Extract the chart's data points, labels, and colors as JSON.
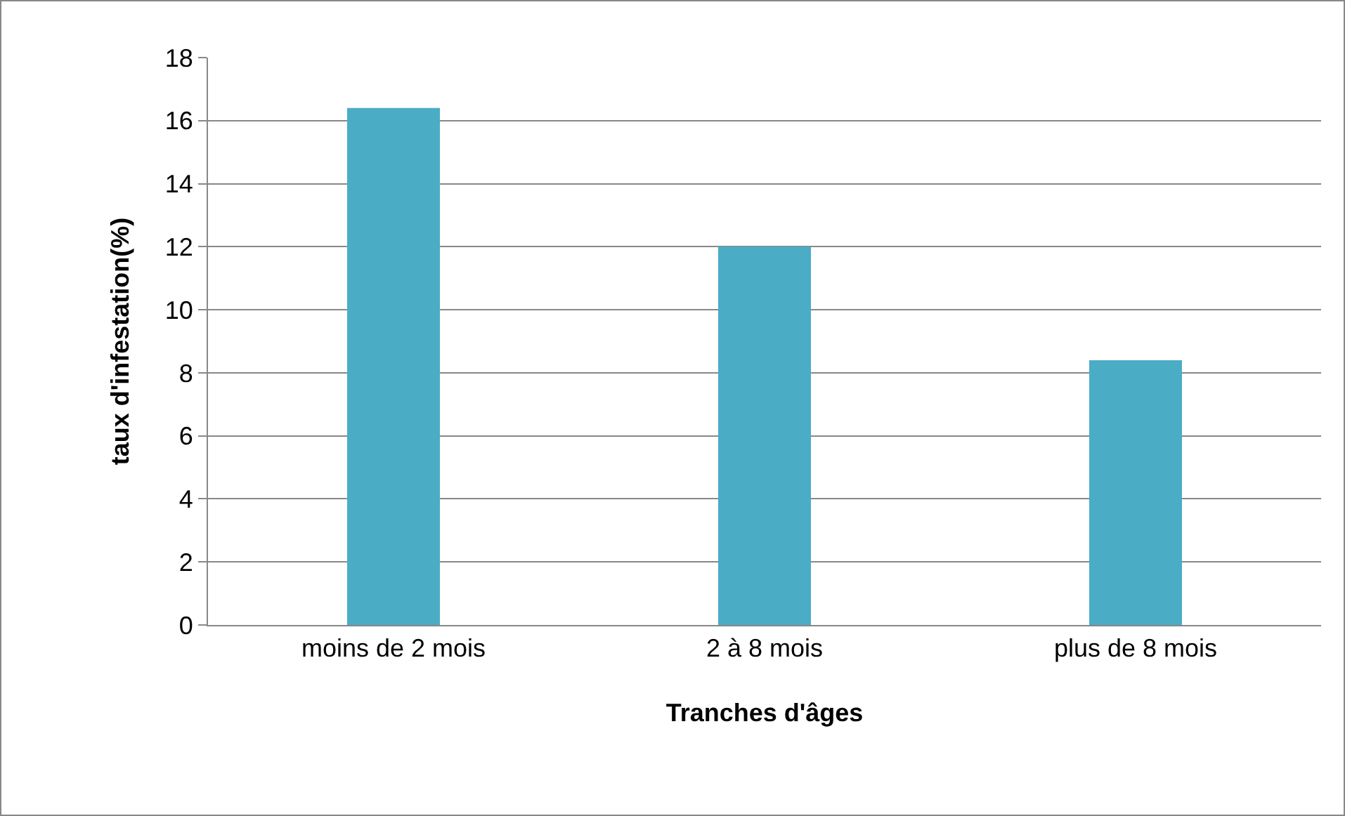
{
  "chart_data": {
    "type": "bar",
    "xlabel": "Tranches d'âges",
    "ylabel": "taux d'infestation(%)",
    "categories": [
      "moins de 2 mois",
      "2 à 8 mois",
      "plus de 8 mois"
    ],
    "values": [
      16.4,
      12,
      8.4
    ],
    "color": "#4bacc6",
    "ylim": [
      0,
      18
    ],
    "yticks": [
      0,
      2,
      4,
      6,
      8,
      10,
      12,
      14,
      16,
      18
    ],
    "grid": "y"
  }
}
